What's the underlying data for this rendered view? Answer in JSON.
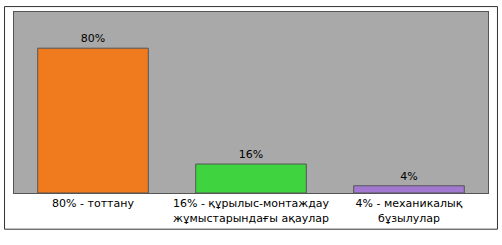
{
  "chart_data": {
    "type": "bar",
    "categories": [
      "80% - тоттану",
      "16% - құрылыс-монтаждау жұмыстарындағы ақаулар",
      "4% - механикалық бұзылулар"
    ],
    "values": [
      80,
      16,
      4
    ],
    "value_labels": [
      "80%",
      "16%",
      "4%"
    ],
    "colors": [
      "#f07a1e",
      "#3fd43f",
      "#a278d0"
    ],
    "data_labels": true,
    "tick_labels": "x",
    "ylim": [
      0,
      100
    ],
    "grid": false
  }
}
